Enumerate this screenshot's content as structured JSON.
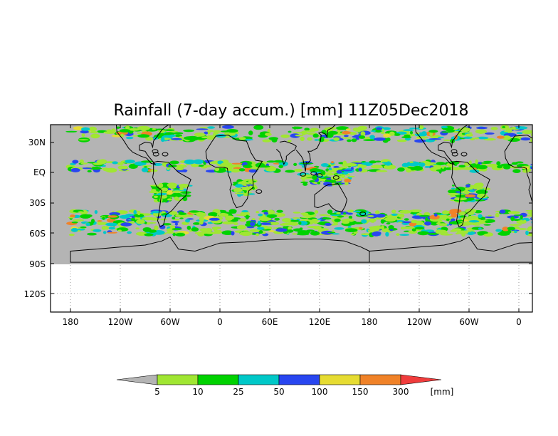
{
  "title": "Rainfall (7-day accum.) [mm] 11Z05Dec2018",
  "lat_ticks": [
    "30N",
    "EQ",
    "30S",
    "60S",
    "90S",
    "120S"
  ],
  "lon_ticks": [
    "180",
    "120W",
    "60W",
    "0",
    "60E",
    "120E",
    "180",
    "120W",
    "60W",
    "0"
  ],
  "legend": {
    "levels": [
      "5",
      "10",
      "25",
      "50",
      "100",
      "150",
      "300"
    ],
    "unit": "[mm]",
    "colors": [
      "#b4b4b4",
      "#a0e632",
      "#00d200",
      "#00c8c8",
      "#2846f0",
      "#e6dc32",
      "#f08228",
      "#f03c3c"
    ]
  },
  "colors": {
    "no_rain": "#b4b4b4",
    "land_outline": "#000000"
  }
}
